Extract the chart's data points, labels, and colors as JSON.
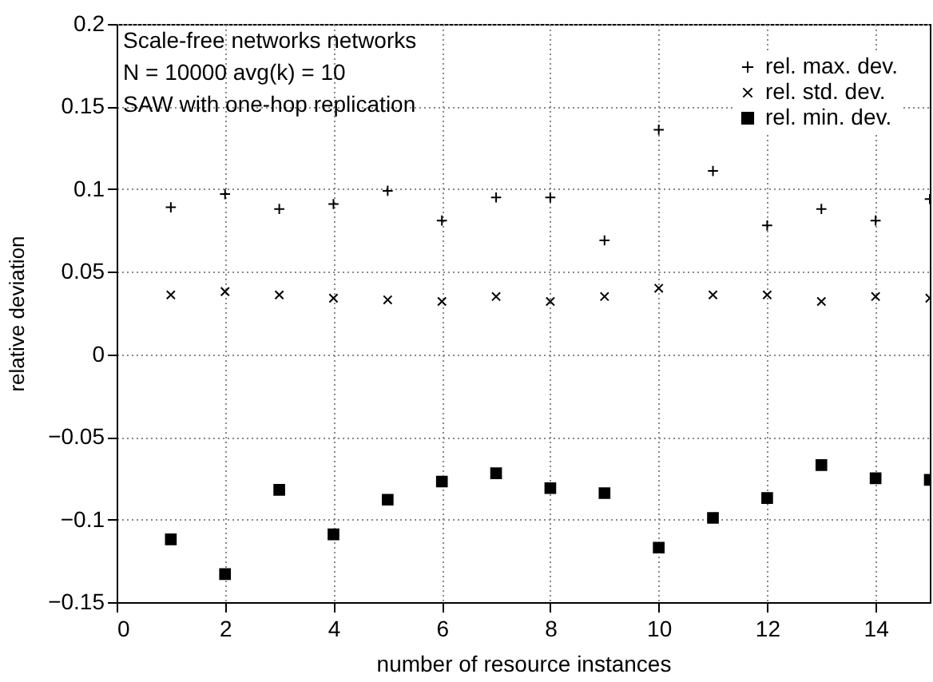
{
  "chart_data": {
    "type": "scatter",
    "xlabel": "number of resource instances",
    "ylabel": "relative deviation",
    "annotations": [
      "Scale-free networks networks",
      "N = 10000   avg(k) = 10",
      "SAW with one-hop replication"
    ],
    "x": [
      1,
      2,
      3,
      4,
      5,
      6,
      7,
      8,
      9,
      10,
      11,
      12,
      13,
      14,
      15
    ],
    "series": [
      {
        "name": "rel. max. dev.",
        "color": "#000000",
        "marker": "cross",
        "values": [
          0.089,
          0.097,
          0.088,
          0.091,
          0.099,
          0.081,
          0.095,
          0.095,
          0.069,
          0.136,
          0.111,
          0.078,
          0.088,
          0.081,
          0.094
        ]
      },
      {
        "name": "rel. std. dev.",
        "color": "#000000",
        "marker": "x",
        "values": [
          0.036,
          0.038,
          0.036,
          0.034,
          0.033,
          0.032,
          0.035,
          0.032,
          0.035,
          0.04,
          0.036,
          0.036,
          0.032,
          0.035,
          0.034
        ]
      },
      {
        "name": "rel. min. dev.",
        "color": "#000000",
        "marker": "square",
        "values": [
          -0.112,
          -0.133,
          -0.082,
          -0.109,
          -0.088,
          -0.077,
          -0.072,
          -0.081,
          -0.084,
          -0.117,
          -0.099,
          -0.087,
          -0.067,
          -0.075,
          -0.076
        ]
      }
    ],
    "xlim": [
      0,
      15
    ],
    "xticks": [
      0,
      2,
      4,
      6,
      8,
      10,
      12,
      14
    ],
    "ylim": [
      -0.15,
      0.2
    ],
    "yticks": [
      -0.15,
      -0.1,
      -0.05,
      0,
      0.05,
      0.1,
      0.15,
      0.2
    ],
    "grid": true,
    "legend": "top right"
  }
}
